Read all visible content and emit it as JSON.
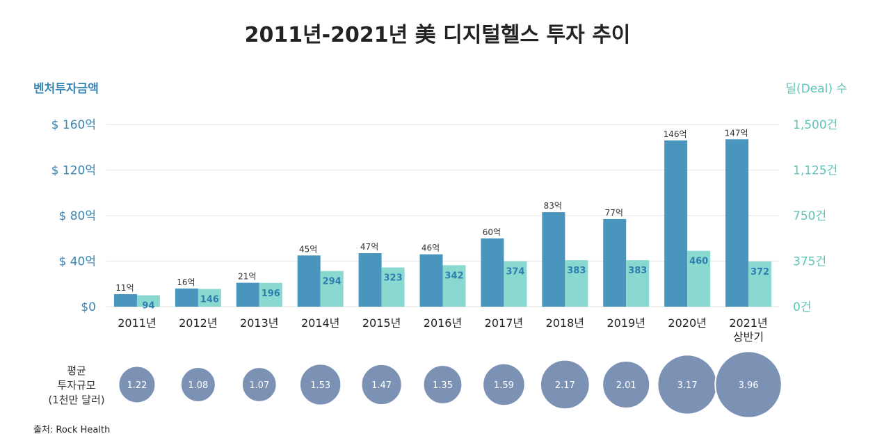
{
  "chart_data": {
    "type": "bar",
    "title": "2011년-2021년 美 디지털헬스 투자 추이",
    "left_axis_title": "벤처투자금액",
    "right_axis_title": "딜(Deal) 수",
    "left_ticks": [
      "$0",
      "$ 40억",
      "$ 80억",
      "$ 120억",
      "$ 160억"
    ],
    "left_tick_values": [
      0,
      40,
      80,
      120,
      160
    ],
    "right_ticks": [
      "0건",
      "375건",
      "750건",
      "1,125건",
      "1,500건"
    ],
    "ylim_left": [
      0,
      160
    ],
    "ylim_right": [
      0,
      1500
    ],
    "categories": [
      [
        "2011년"
      ],
      [
        "2012년"
      ],
      [
        "2013년"
      ],
      [
        "2014년"
      ],
      [
        "2015년"
      ],
      [
        "2016년"
      ],
      [
        "2017년"
      ],
      [
        "2018년"
      ],
      [
        "2019년"
      ],
      [
        "2020년"
      ],
      [
        "2021년",
        "상반기"
      ]
    ],
    "series": [
      {
        "axis": "left",
        "values": [
          11,
          16,
          21,
          45,
          47,
          46,
          60,
          83,
          77,
          146,
          147
        ],
        "labels": [
          "11억",
          "16억",
          "21억",
          "45억",
          "47억",
          "46억",
          "60억",
          "83억",
          "77억",
          "146억",
          "147억"
        ]
      },
      {
        "axis": "right",
        "values": [
          94,
          146,
          196,
          294,
          323,
          342,
          374,
          383,
          383,
          460,
          372
        ],
        "labels": [
          "94",
          "146",
          "196",
          "294",
          "323",
          "342",
          "374",
          "383",
          "383",
          "460",
          "372"
        ]
      }
    ],
    "bubbles": {
      "label_lines": [
        "평균",
        "투자규모",
        "(1천만 달러)"
      ],
      "values": [
        1.22,
        1.08,
        1.07,
        1.53,
        1.47,
        1.35,
        1.59,
        2.17,
        2.01,
        3.17,
        3.96
      ],
      "labels": [
        "1.22",
        "1.08",
        "1.07",
        "1.53",
        "1.47",
        "1.35",
        "1.59",
        "2.17",
        "2.01",
        "3.17",
        "3.96"
      ]
    },
    "grid": true,
    "legend": "none"
  },
  "source": "출처: Rock Health",
  "colors": {
    "bar_investment": "#4a95bd",
    "bar_deals": "#8ad9d1",
    "left_axis": "#3a86b4",
    "right_axis": "#5fc4b8",
    "deal_label": "#2e7fb0",
    "bubble": "#7c92b5",
    "bubble_stroke": "#ffffff",
    "grid": "#e6e6e6"
  }
}
